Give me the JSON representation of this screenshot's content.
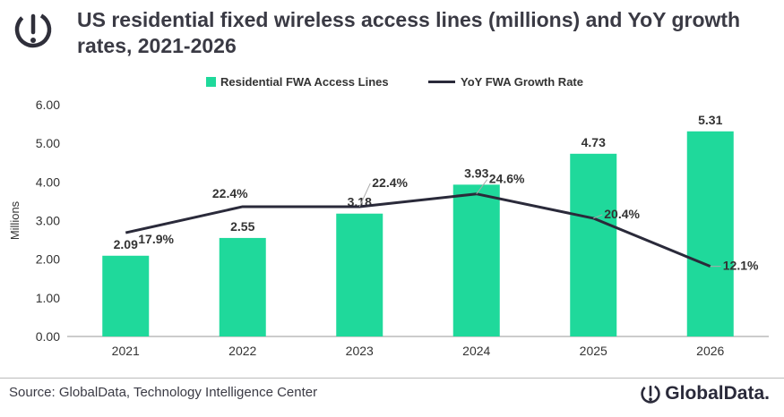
{
  "header": {
    "title_line1": "US residential fixed wireless access lines (millions) and YoY growth",
    "title_line2": "rates, 2021-2026",
    "logo_icon": "globaldata-logo-icon"
  },
  "colors": {
    "bar": "#1fd99b",
    "line": "#2a2a3a",
    "text": "#333333"
  },
  "chart_data": {
    "type": "bar",
    "title": "US residential fixed wireless access lines (millions) and YoY growth rates, 2021-2026",
    "categories": [
      "2021",
      "2022",
      "2023",
      "2024",
      "2025",
      "2026"
    ],
    "ylabel": "Millions",
    "ylim": [
      0,
      6
    ],
    "yticks": [
      "0.00",
      "1.00",
      "2.00",
      "3.00",
      "4.00",
      "5.00",
      "6.00"
    ],
    "grid": false,
    "legend": "top",
    "series": [
      {
        "name": "Residential FWA Access Lines",
        "type": "bar",
        "values": [
          2.09,
          2.55,
          3.18,
          3.93,
          4.73,
          5.31
        ],
        "labels": [
          "2.09",
          "2.55",
          "3.18",
          "3.93",
          "4.73",
          "5.31"
        ]
      },
      {
        "name": "YoY FWA Growth Rate",
        "type": "line",
        "values": [
          17.9,
          22.4,
          22.4,
          24.6,
          20.4,
          12.1
        ],
        "labels": [
          "17.9%",
          "22.4%",
          "22.4%",
          "24.6%",
          "20.4%",
          "12.1%"
        ]
      }
    ]
  },
  "footer": {
    "source": "Source: GlobalData, Technology Intelligence Center",
    "brand": "GlobalData."
  }
}
